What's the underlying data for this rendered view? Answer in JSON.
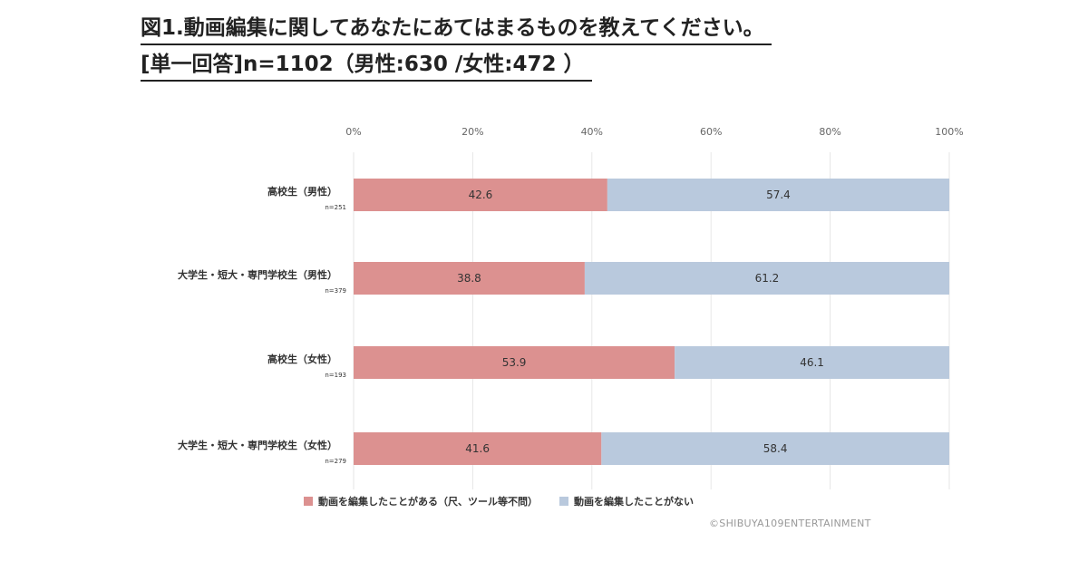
{
  "title": {
    "line1": "図1.動画編集に関してあなたにあてはまるものを教えてください。",
    "line2": "[単一回答]n=1102（男性:630 /女性:472 ）"
  },
  "chart_data": {
    "type": "bar",
    "orientation": "horizontal-stacked-100",
    "x_ticks": [
      "0%",
      "20%",
      "40%",
      "60%",
      "80%",
      "100%"
    ],
    "xlim": [
      0,
      100
    ],
    "categories": [
      {
        "label": "高校生（男性）",
        "n": "n=251"
      },
      {
        "label": "大学生・短大・専門学校生（男性）",
        "n": "n=379"
      },
      {
        "label": "高校生（女性）",
        "n": "n=193"
      },
      {
        "label": "大学生・短大・専門学校生（女性）",
        "n": "n=279"
      }
    ],
    "series": [
      {
        "name": "動画を編集したことがある（尺、ツール等不問）",
        "color": "#dc9190",
        "values": [
          42.6,
          38.8,
          53.9,
          41.6
        ]
      },
      {
        "name": "動画を編集したことがない",
        "color": "#b9c9dd",
        "values": [
          57.4,
          61.2,
          46.1,
          58.4
        ]
      }
    ],
    "legend_position": "bottom",
    "grid": true
  },
  "copyright": "©SHIBUYA109ENTERTAINMENT"
}
